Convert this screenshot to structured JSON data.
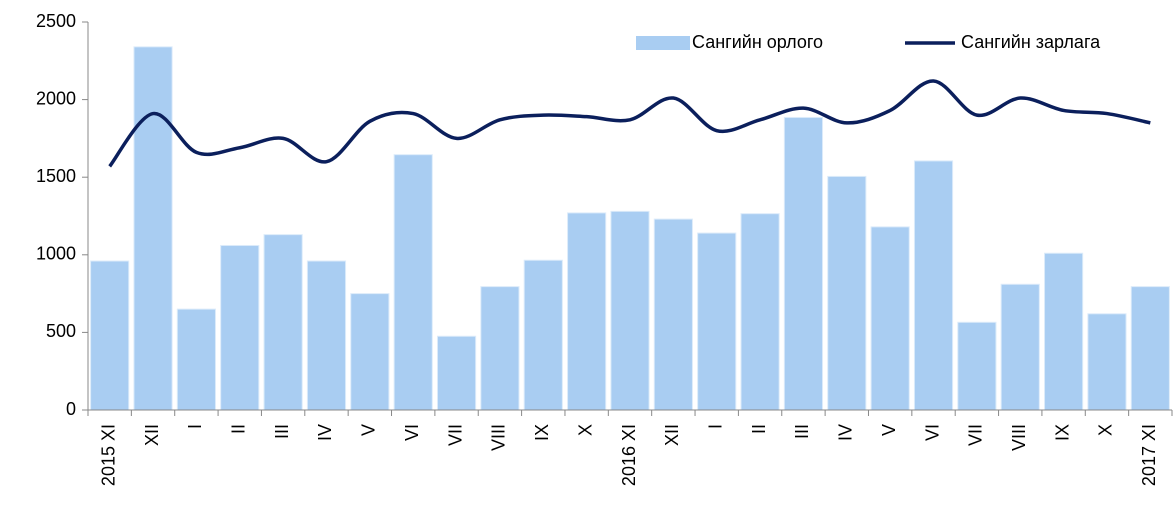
{
  "chart_data": {
    "type": "bar_line",
    "categories": [
      "2015 XI",
      "XII",
      "I",
      "II",
      "III",
      "IV",
      "V",
      "VI",
      "VII",
      "VIII",
      "IX",
      "X",
      "2016 XI",
      "XII",
      "I",
      "II",
      "III",
      "IV",
      "V",
      "VI",
      "VII",
      "VIII",
      "IX",
      "X",
      "2017 XI"
    ],
    "series": [
      {
        "name": "Сангийн орлого",
        "type": "bar",
        "color": "#a9cdf2",
        "values": [
          960,
          2340,
          650,
          1060,
          1130,
          960,
          750,
          1645,
          475,
          795,
          965,
          1270,
          1280,
          1230,
          1140,
          1265,
          1885,
          1505,
          1180,
          1605,
          565,
          810,
          1010,
          620,
          795
        ]
      },
      {
        "name": "Сангийн зарлага",
        "type": "line",
        "color": "#0b1f5c",
        "values": [
          1570,
          1910,
          1660,
          1690,
          1750,
          1600,
          1860,
          1910,
          1750,
          1870,
          1900,
          1890,
          1870,
          2010,
          1800,
          1870,
          1945,
          1850,
          1930,
          2120,
          1900,
          2010,
          1930,
          1910,
          1850
        ]
      }
    ],
    "ylim": [
      0,
      2500
    ],
    "yticks": [
      0,
      500,
      1000,
      1500,
      2000,
      2500
    ],
    "grid": false,
    "legend": "top-right"
  }
}
